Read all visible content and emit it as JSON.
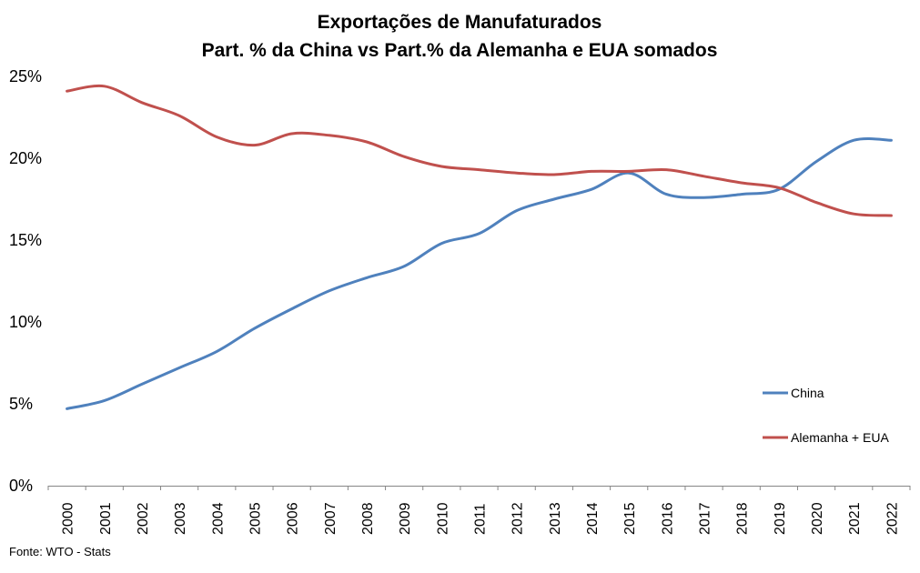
{
  "chart_data": {
    "type": "line",
    "title_line1": "Exportações de Manufaturados",
    "title_line2": "Part. % da China vs Part.% da Alemanha e EUA somados",
    "xlabel": "",
    "ylabel": "",
    "ylim": [
      0,
      25
    ],
    "y_ticks": [
      "0%",
      "5%",
      "10%",
      "15%",
      "20%",
      "25%"
    ],
    "y_tick_values": [
      0,
      5,
      10,
      15,
      20,
      25
    ],
    "categories": [
      "2000",
      "2001",
      "2002",
      "2003",
      "2004",
      "2005",
      "2006",
      "2007",
      "2008",
      "2009",
      "2010",
      "2011",
      "2012",
      "2013",
      "2014",
      "2015",
      "2016",
      "2017",
      "2018",
      "2019",
      "2020",
      "2021",
      "2022"
    ],
    "grid": false,
    "legend_position": "right",
    "series": [
      {
        "name": "China",
        "color": "#4F81BD",
        "values": [
          4.7,
          5.2,
          6.2,
          7.2,
          8.2,
          9.6,
          10.8,
          11.9,
          12.7,
          13.4,
          14.8,
          15.4,
          16.8,
          17.5,
          18.1,
          19.1,
          17.8,
          17.6,
          17.8,
          18.1,
          19.8,
          21.1,
          21.1
        ]
      },
      {
        "name": "Alemanha + EUA",
        "color": "#C0504D",
        "values": [
          24.1,
          24.4,
          23.4,
          22.6,
          21.3,
          20.8,
          21.5,
          21.4,
          21.0,
          20.1,
          19.5,
          19.3,
          19.1,
          19.0,
          19.2,
          19.2,
          19.3,
          18.9,
          18.5,
          18.2,
          17.3,
          16.6,
          16.5
        ]
      }
    ]
  },
  "source": "Fonte: WTO - Stats"
}
